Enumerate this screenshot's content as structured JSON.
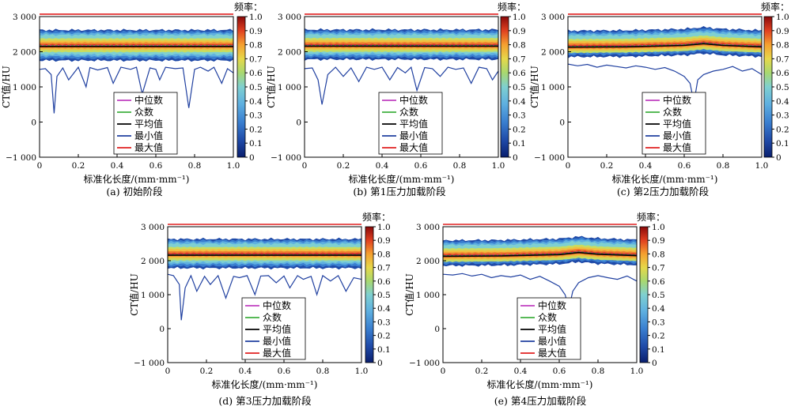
{
  "figure": {
    "xlabel": "标准化长度/(mm·mm⁻¹)",
    "ylabel": "CT值/HU",
    "colorbar_title": "频率：",
    "legend": [
      "中位数",
      "众数",
      "平均值",
      "最小值",
      "最大值"
    ],
    "colors": {
      "median": "#c040c0",
      "mode": "#40b040",
      "mean": "#000000",
      "min": "#2040a0",
      "max": "#e02020"
    }
  },
  "chart_data": [
    {
      "type": "heatmap",
      "caption": "(a) 初始阶段",
      "xlim": [
        0,
        1.0
      ],
      "ylim": [
        -1000,
        3000
      ],
      "xticks": [
        "0",
        "0.2",
        "0.4",
        "0.6",
        "0.8",
        "1.0"
      ],
      "yticks": [
        "−1 000",
        "0",
        "1 000",
        "2 000",
        "3 000"
      ],
      "colorbar": {
        "min": 0,
        "max": 1.0,
        "ticks": [
          "0",
          "0.1",
          "0.2",
          "0.3",
          "0.4",
          "0.5",
          "0.6",
          "0.7",
          "0.8",
          "0.9",
          "1.0"
        ]
      },
      "series": [
        {
          "name": "中位数",
          "x": [
            0,
            1.0
          ],
          "y": [
            2170,
            2170
          ]
        },
        {
          "name": "众数",
          "x": [
            0,
            1.0
          ],
          "y": [
            2170,
            2170
          ]
        },
        {
          "name": "平均值",
          "x": [
            0,
            1.0
          ],
          "y": [
            2150,
            2150
          ]
        },
        {
          "name": "最小值",
          "x": [
            0,
            0.03,
            0.06,
            0.075,
            0.09,
            0.12,
            0.15,
            0.2,
            0.24,
            0.26,
            0.3,
            0.35,
            0.38,
            0.42,
            0.47,
            0.5,
            0.53,
            0.57,
            0.6,
            0.62,
            0.65,
            0.7,
            0.74,
            0.77,
            0.8,
            0.83,
            0.87,
            0.9,
            0.94,
            0.97,
            1.0
          ],
          "y": [
            1500,
            1520,
            1350,
            250,
            1300,
            1540,
            1200,
            1560,
            1000,
            1550,
            1480,
            1550,
            1100,
            1560,
            1500,
            1560,
            800,
            1540,
            1500,
            1200,
            1560,
            1520,
            1540,
            400,
            1500,
            1560,
            1450,
            1560,
            1100,
            1520,
            1400
          ]
        },
        {
          "name": "最大值",
          "x": [
            0,
            1.0
          ],
          "y": [
            3070,
            3070
          ]
        }
      ],
      "band": {
        "low": 1750,
        "high": 2620,
        "core_low": 2050,
        "core_high": 2320
      }
    },
    {
      "type": "heatmap",
      "caption": "(b) 第1压力加载阶段",
      "xlim": [
        0,
        1.0
      ],
      "ylim": [
        -1000,
        3000
      ],
      "xticks": [
        "0",
        "0.2",
        "0.4",
        "0.6",
        "0.8",
        "1.0"
      ],
      "yticks": [
        "−1 000",
        "0",
        "1 000",
        "2 000",
        "3 000"
      ],
      "colorbar": {
        "min": 0,
        "max": 1.0,
        "ticks": [
          "0",
          "0.1",
          "0.2",
          "0.3",
          "0.4",
          "0.5",
          "0.6",
          "0.7",
          "0.8",
          "0.9",
          "1.0"
        ]
      },
      "series": [
        {
          "name": "中位数",
          "x": [
            0,
            1.0
          ],
          "y": [
            2180,
            2180
          ]
        },
        {
          "name": "众数",
          "x": [
            0,
            1.0
          ],
          "y": [
            2180,
            2180
          ]
        },
        {
          "name": "平均值",
          "x": [
            0,
            1.0
          ],
          "y": [
            2160,
            2160
          ]
        },
        {
          "name": "最小值",
          "x": [
            0,
            0.04,
            0.07,
            0.09,
            0.12,
            0.16,
            0.2,
            0.24,
            0.28,
            0.32,
            0.36,
            0.4,
            0.44,
            0.48,
            0.52,
            0.55,
            0.58,
            0.62,
            0.66,
            0.7,
            0.74,
            0.78,
            0.82,
            0.86,
            0.9,
            0.94,
            0.97,
            1.0
          ],
          "y": [
            1520,
            1540,
            1200,
            500,
            1350,
            1560,
            1300,
            1540,
            1150,
            1560,
            1500,
            1560,
            1200,
            1550,
            1400,
            1560,
            900,
            1550,
            1520,
            1300,
            1560,
            1500,
            1540,
            1100,
            1560,
            1520,
            1200,
            1450
          ]
        },
        {
          "name": "最大值",
          "x": [
            0,
            1.0
          ],
          "y": [
            3070,
            3070
          ]
        }
      ],
      "band": {
        "low": 1780,
        "high": 2630,
        "core_low": 2060,
        "core_high": 2330
      }
    },
    {
      "type": "heatmap",
      "caption": "(c) 第2压力加载阶段",
      "xlim": [
        0,
        1.0
      ],
      "ylim": [
        -1000,
        3000
      ],
      "xticks": [
        "0",
        "0.2",
        "0.4",
        "0.6",
        "0.8",
        "1.0"
      ],
      "yticks": [
        "−1 000",
        "0",
        "1 000",
        "2 000",
        "3 000"
      ],
      "colorbar": {
        "min": 0,
        "max": 1.0,
        "ticks": [
          "0",
          "0.1",
          "0.2",
          "0.3",
          "0.4",
          "0.5",
          "0.6",
          "0.7",
          "0.8",
          "0.9",
          "1.0"
        ]
      },
      "series": [
        {
          "name": "中位数",
          "x": [
            0,
            0.3,
            0.6,
            0.7,
            0.8,
            1.0
          ],
          "y": [
            2150,
            2160,
            2200,
            2250,
            2200,
            2160
          ]
        },
        {
          "name": "众数",
          "x": [
            0,
            0.3,
            0.6,
            0.7,
            0.8,
            1.0
          ],
          "y": [
            2150,
            2160,
            2200,
            2250,
            2200,
            2160
          ]
        },
        {
          "name": "平均值",
          "x": [
            0,
            0.3,
            0.6,
            0.7,
            0.8,
            1.0
          ],
          "y": [
            2130,
            2140,
            2180,
            2230,
            2180,
            2140
          ]
        },
        {
          "name": "最小值",
          "x": [
            0,
            0.05,
            0.1,
            0.15,
            0.2,
            0.25,
            0.3,
            0.35,
            0.4,
            0.45,
            0.5,
            0.55,
            0.6,
            0.63,
            0.65,
            0.67,
            0.7,
            0.75,
            0.8,
            0.85,
            0.9,
            0.95,
            1.0
          ],
          "y": [
            1650,
            1600,
            1640,
            1560,
            1620,
            1580,
            1540,
            1600,
            1560,
            1500,
            1550,
            1450,
            1300,
            1100,
            550,
            1200,
            1350,
            1450,
            1500,
            1580,
            1450,
            1520,
            1350
          ]
        },
        {
          "name": "最大值",
          "x": [
            0,
            1.0
          ],
          "y": [
            3070,
            3070
          ]
        }
      ],
      "band": {
        "low": 1850,
        "high": 2600,
        "core_low": 2030,
        "core_high": 2300
      }
    },
    {
      "type": "heatmap",
      "caption": "(d) 第3压力加载阶段",
      "xlim": [
        0,
        1.0
      ],
      "ylim": [
        -1000,
        3000
      ],
      "xticks": [
        "0",
        "0.2",
        "0.4",
        "0.6",
        "0.8",
        "1.0"
      ],
      "yticks": [
        "−1 000",
        "0",
        "1 000",
        "2 000",
        "3 000"
      ],
      "colorbar": {
        "min": 0,
        "max": 1.0,
        "ticks": [
          "0",
          "0.1",
          "0.2",
          "0.3",
          "0.4",
          "0.5",
          "0.6",
          "0.7",
          "0.8",
          "0.9",
          "1.0"
        ]
      },
      "series": [
        {
          "name": "中位数",
          "x": [
            0,
            1.0
          ],
          "y": [
            2180,
            2180
          ]
        },
        {
          "name": "众数",
          "x": [
            0,
            1.0
          ],
          "y": [
            2180,
            2180
          ]
        },
        {
          "name": "平均值",
          "x": [
            0,
            1.0
          ],
          "y": [
            2160,
            2160
          ]
        },
        {
          "name": "最小值",
          "x": [
            0,
            0.03,
            0.06,
            0.07,
            0.09,
            0.12,
            0.15,
            0.19,
            0.22,
            0.26,
            0.3,
            0.34,
            0.37,
            0.41,
            0.45,
            0.48,
            0.52,
            0.56,
            0.6,
            0.63,
            0.67,
            0.7,
            0.74,
            0.77,
            0.8,
            0.84,
            0.88,
            0.92,
            0.96,
            1.0
          ],
          "y": [
            1600,
            1560,
            1300,
            250,
            1200,
            1560,
            1100,
            1540,
            1300,
            1560,
            900,
            1540,
            1500,
            1560,
            1000,
            1550,
            1560,
            1350,
            1550,
            1200,
            1560,
            1450,
            1540,
            1000,
            1560,
            1400,
            1560,
            1100,
            1500,
            1450
          ]
        },
        {
          "name": "最大值",
          "x": [
            0,
            1.0
          ],
          "y": [
            3070,
            3070
          ]
        }
      ],
      "band": {
        "low": 1780,
        "high": 2640,
        "core_low": 2070,
        "core_high": 2340
      }
    },
    {
      "type": "heatmap",
      "caption": "(e) 第4压力加载阶段",
      "xlim": [
        0,
        1.0
      ],
      "ylim": [
        -1000,
        3000
      ],
      "xticks": [
        "0",
        "0.2",
        "0.4",
        "0.6",
        "0.8",
        "1.0"
      ],
      "yticks": [
        "−1 000",
        "0",
        "1 000",
        "2 000",
        "3 000"
      ],
      "colorbar": {
        "min": 0,
        "max": 1.0,
        "ticks": [
          "0",
          "0.1",
          "0.2",
          "0.3",
          "0.4",
          "0.5",
          "0.6",
          "0.7",
          "0.8",
          "0.9",
          "1.0"
        ]
      },
      "series": [
        {
          "name": "中位数",
          "x": [
            0,
            0.3,
            0.6,
            0.7,
            0.8,
            1.0
          ],
          "y": [
            2150,
            2160,
            2200,
            2260,
            2210,
            2170
          ]
        },
        {
          "name": "众数",
          "x": [
            0,
            0.3,
            0.6,
            0.7,
            0.8,
            1.0
          ],
          "y": [
            2150,
            2160,
            2200,
            2260,
            2210,
            2170
          ]
        },
        {
          "name": "平均值",
          "x": [
            0,
            0.3,
            0.6,
            0.7,
            0.8,
            1.0
          ],
          "y": [
            2130,
            2140,
            2180,
            2240,
            2190,
            2150
          ]
        },
        {
          "name": "最小值",
          "x": [
            0,
            0.05,
            0.1,
            0.15,
            0.2,
            0.25,
            0.3,
            0.35,
            0.4,
            0.45,
            0.5,
            0.55,
            0.6,
            0.63,
            0.65,
            0.67,
            0.7,
            0.75,
            0.8,
            0.85,
            0.9,
            0.95,
            1.0
          ],
          "y": [
            1600,
            1580,
            1620,
            1550,
            1600,
            1500,
            1560,
            1520,
            1580,
            1450,
            1540,
            1400,
            1250,
            1000,
            600,
            1100,
            1350,
            1500,
            1560,
            1500,
            1450,
            1550,
            1400
          ]
        },
        {
          "name": "最大值",
          "x": [
            0,
            1.0
          ],
          "y": [
            3070,
            3070
          ]
        }
      ],
      "band": {
        "low": 1850,
        "high": 2600,
        "core_low": 2030,
        "core_high": 2300
      }
    }
  ]
}
